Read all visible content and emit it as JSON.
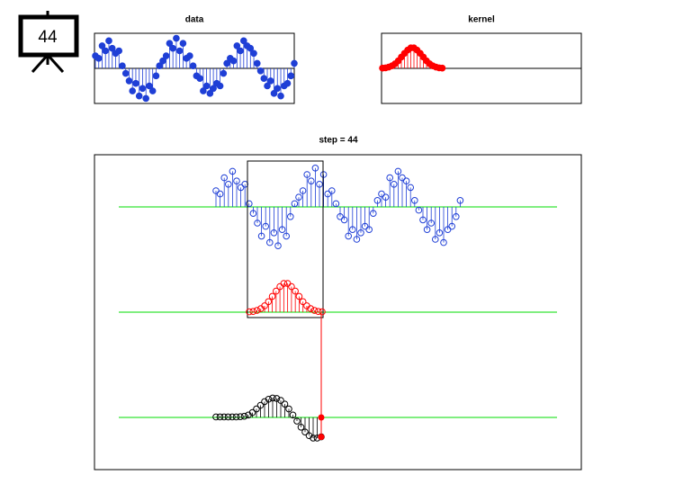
{
  "slide_number": 44,
  "chart_data": [
    {
      "type": "stem",
      "title": "data",
      "values": [
        0.5,
        0.4,
        0.9,
        0.7,
        1.1,
        0.8,
        0.6,
        0.7,
        0.1,
        -0.2,
        -0.5,
        -0.9,
        -0.6,
        -1.1,
        -0.8,
        -1.2,
        -0.7,
        -0.9,
        -0.3,
        0.1,
        0.3,
        0.5,
        1.0,
        0.8,
        1.2,
        0.7,
        1.0,
        0.4,
        0.5,
        0.1,
        -0.3,
        -0.4,
        -0.9,
        -0.7,
        -1.0,
        -0.8,
        -0.6,
        -0.7,
        -0.2,
        0.2,
        0.4,
        0.3,
        0.9,
        0.7,
        1.1,
        0.9,
        0.8,
        0.6,
        0.2,
        -0.1,
        -0.4,
        -0.7,
        -0.5,
        -1.0,
        -0.8,
        -1.1,
        -0.7,
        -0.6,
        -0.3,
        0.2
      ],
      "color": "#1f3fd6",
      "ylim": [
        -1.4,
        1.4
      ]
    },
    {
      "type": "stem",
      "title": "kernel",
      "values": [
        0.01,
        0.02,
        0.05,
        0.1,
        0.18,
        0.3,
        0.45,
        0.6,
        0.73,
        0.82,
        0.82,
        0.73,
        0.6,
        0.45,
        0.3,
        0.18,
        0.1,
        0.05,
        0.02,
        0.01
      ],
      "color": "#ff0000",
      "ylim": [
        -1.4,
        1.4
      ]
    },
    {
      "type": "convolution",
      "title": "step = 44",
      "output": [
        0.02,
        0.02,
        0.02,
        0.02,
        0.02,
        0.02,
        0.03,
        0.05,
        0.1,
        0.2,
        0.35,
        0.5,
        0.65,
        0.75,
        0.8,
        0.78,
        0.7,
        0.55,
        0.35,
        0.1,
        -0.15,
        -0.4,
        -0.6,
        -0.75,
        -0.85,
        -0.85,
        -0.8
      ],
      "output_color": "#000000",
      "baseline_color": "#00dd00",
      "cursor_color": "#ff0000"
    }
  ]
}
